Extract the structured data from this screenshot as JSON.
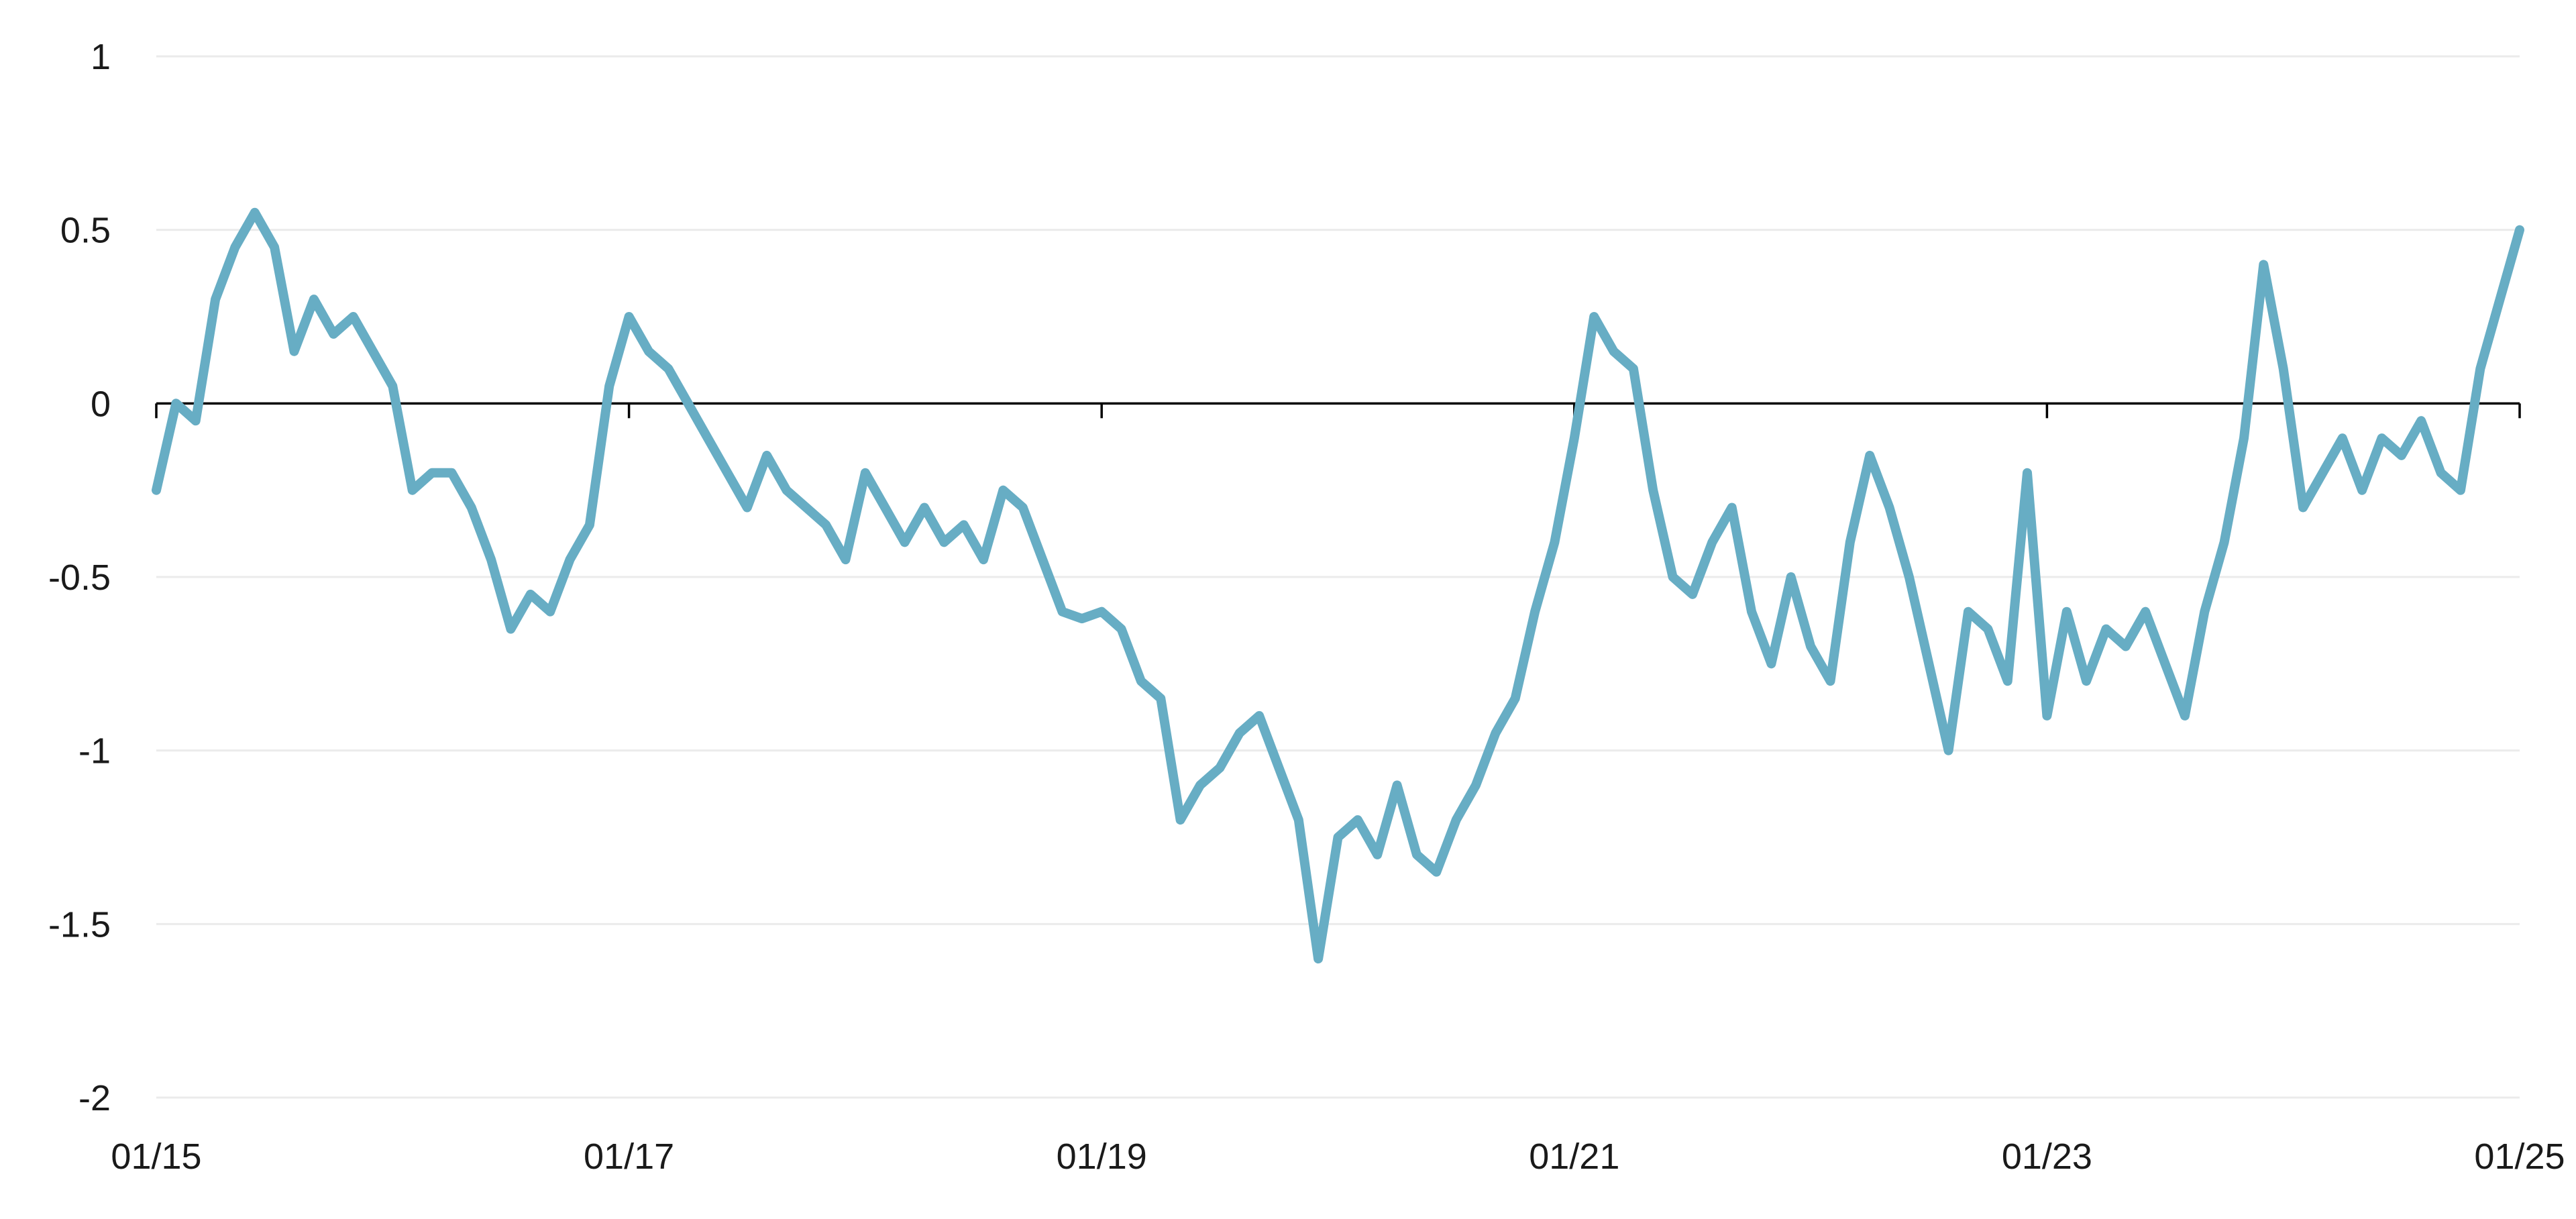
{
  "chart_data": {
    "type": "line",
    "title": "",
    "xlabel": "",
    "ylabel": "",
    "x_ticks": [
      "01/15",
      "01/17",
      "01/19",
      "01/21",
      "01/23",
      "01/25"
    ],
    "y_ticks": [
      "1",
      "0.5",
      "0",
      "-0.5",
      "-1",
      "-1.5",
      "-2"
    ],
    "y_tick_values": [
      1,
      0.5,
      0,
      -0.5,
      -1,
      -1.5,
      -2
    ],
    "xlim": [
      "2015-01",
      "2025-01"
    ],
    "ylim": [
      -2,
      1
    ],
    "grid": true,
    "legend": "none",
    "series": [
      {
        "color": "#67adc4",
        "x": [
          "2015-01",
          "2015-02",
          "2015-03",
          "2015-04",
          "2015-05",
          "2015-06",
          "2015-07",
          "2015-08",
          "2015-09",
          "2015-10",
          "2015-11",
          "2015-12",
          "2016-01",
          "2016-02",
          "2016-03",
          "2016-04",
          "2016-05",
          "2016-06",
          "2016-07",
          "2016-08",
          "2016-09",
          "2016-10",
          "2016-11",
          "2016-12",
          "2017-01",
          "2017-02",
          "2017-03",
          "2017-04",
          "2017-05",
          "2017-06",
          "2017-07",
          "2017-08",
          "2017-09",
          "2017-10",
          "2017-11",
          "2017-12",
          "2018-01",
          "2018-02",
          "2018-03",
          "2018-04",
          "2018-05",
          "2018-06",
          "2018-07",
          "2018-08",
          "2018-09",
          "2018-10",
          "2018-11",
          "2018-12",
          "2019-01",
          "2019-02",
          "2019-03",
          "2019-04",
          "2019-05",
          "2019-06",
          "2019-07",
          "2019-08",
          "2019-09",
          "2019-10",
          "2019-11",
          "2019-12",
          "2020-01",
          "2020-02",
          "2020-03",
          "2020-04",
          "2020-05",
          "2020-06",
          "2020-07",
          "2020-08",
          "2020-09",
          "2020-10",
          "2020-11",
          "2020-12",
          "2021-01",
          "2021-02",
          "2021-03",
          "2021-04",
          "2021-05",
          "2021-06",
          "2021-07",
          "2021-08",
          "2021-09",
          "2021-10",
          "2021-11",
          "2021-12",
          "2022-01",
          "2022-02",
          "2022-03",
          "2022-04",
          "2022-05",
          "2022-06",
          "2022-07",
          "2022-08",
          "2022-09",
          "2022-10",
          "2022-11",
          "2022-12",
          "2023-01",
          "2023-02",
          "2023-03",
          "2023-04",
          "2023-05",
          "2023-06",
          "2023-07",
          "2023-08",
          "2023-09",
          "2023-10",
          "2023-11",
          "2023-12",
          "2024-01",
          "2024-02",
          "2024-03",
          "2024-04",
          "2024-05",
          "2024-06",
          "2024-07",
          "2024-08",
          "2024-09",
          "2024-10",
          "2024-11",
          "2024-12",
          "2025-01"
        ],
        "y": [
          -0.25,
          0.0,
          -0.05,
          0.3,
          0.45,
          0.55,
          0.45,
          0.15,
          0.3,
          0.2,
          0.25,
          0.15,
          0.05,
          -0.25,
          -0.2,
          -0.2,
          -0.3,
          -0.45,
          -0.65,
          -0.55,
          -0.6,
          -0.45,
          -0.35,
          0.05,
          0.25,
          0.15,
          0.1,
          0.0,
          -0.1,
          -0.2,
          -0.3,
          -0.15,
          -0.25,
          -0.3,
          -0.35,
          -0.45,
          -0.2,
          -0.3,
          -0.4,
          -0.3,
          -0.4,
          -0.35,
          -0.45,
          -0.25,
          -0.3,
          -0.45,
          -0.6,
          -0.62,
          -0.6,
          -0.65,
          -0.8,
          -0.85,
          -1.2,
          -1.1,
          -1.05,
          -0.95,
          -0.9,
          -1.05,
          -1.2,
          -1.6,
          -1.25,
          -1.2,
          -1.3,
          -1.1,
          -1.3,
          -1.35,
          -1.2,
          -1.1,
          -0.95,
          -0.85,
          -0.6,
          -0.4,
          -0.1,
          0.25,
          0.15,
          0.1,
          -0.25,
          -0.5,
          -0.55,
          -0.4,
          -0.3,
          -0.6,
          -0.75,
          -0.5,
          -0.7,
          -0.8,
          -0.4,
          -0.15,
          -0.3,
          -0.5,
          -0.75,
          -1.0,
          -0.6,
          -0.65,
          -0.8,
          -0.2,
          -0.9,
          -0.6,
          -0.8,
          -0.65,
          -0.7,
          -0.6,
          -0.75,
          -0.9,
          -0.6,
          -0.4,
          -0.1,
          0.4,
          0.1,
          -0.3,
          -0.2,
          -0.1,
          -0.25,
          -0.1,
          -0.15,
          -0.05,
          -0.2,
          -0.25,
          0.1,
          0.3,
          0.5
        ]
      }
    ]
  }
}
